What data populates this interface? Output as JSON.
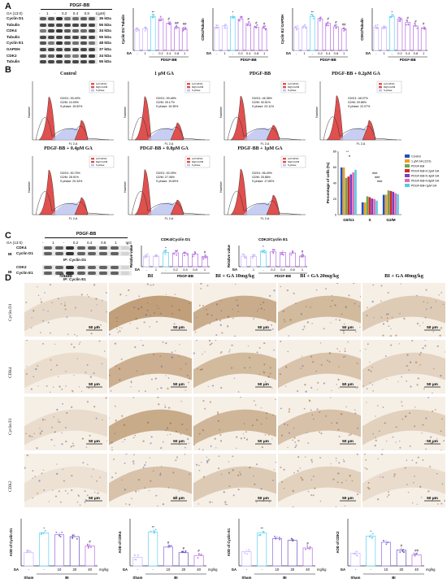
{
  "panel_labels": {
    "A": "A",
    "B": "B",
    "C": "C",
    "D": "D"
  },
  "panelA": {
    "blot_header": "PDGF-BB",
    "ga_label": "GA (13:0)",
    "lanes": [
      "-",
      "1",
      "-",
      "0.2",
      "0.4",
      "0.8",
      "1"
    ],
    "unit": "(μM)",
    "proteins": [
      "Cyclin D1",
      "Tubulin",
      "CDK4",
      "Tubulin",
      "Cyclin E1",
      "GAPDH",
      "CDK2",
      "Tubulin"
    ],
    "sizes": [
      "36 kDa",
      "55 kDa",
      "34 kDa",
      "55 kDa",
      "48 kDa",
      "37 kDa",
      "34 kDa",
      "55 kDa"
    ],
    "charts": [
      {
        "ylabel": "Cyclin D1/ Tubulin",
        "xaxis_ga": "GA",
        "pdgf": "PDGF-BB",
        "ticks": [
          "-",
          "1",
          "-",
          "0.2",
          "0.4",
          "0.8",
          "1"
        ],
        "unit": "(μM)",
        "marks": [
          "",
          "",
          "**",
          "",
          "#",
          "##",
          "##"
        ]
      },
      {
        "ylabel": "CDK4/Tubulin",
        "xaxis_ga": "GA",
        "pdgf": "PDGF-BB",
        "ticks": [
          "-",
          "1",
          "-",
          "0.2",
          "0.4",
          "0.8",
          "1"
        ],
        "unit": "(μM)",
        "marks": [
          "",
          "",
          "*",
          "",
          "#",
          "#",
          "#"
        ]
      },
      {
        "ylabel": "Cyclin E1/ GAPDH",
        "xaxis_ga": "GA",
        "pdgf": "PDGF-BB",
        "ticks": [
          "-",
          "1",
          "-",
          "0.2",
          "0.4",
          "0.8",
          "1"
        ],
        "unit": "(μM)",
        "marks": [
          "",
          "",
          "**",
          "",
          "#",
          "#",
          "##"
        ]
      },
      {
        "ylabel": "CDK2/Tubulin",
        "xaxis_ga": "GA",
        "pdgf": "PDGF-BB",
        "ticks": [
          "-",
          "1",
          "-",
          "0.2",
          "0.4",
          "0.8",
          "1"
        ],
        "unit": "(μM)",
        "marks": [
          "",
          "",
          "*",
          "",
          "#",
          "#",
          "#"
        ]
      }
    ]
  },
  "panelB": {
    "histograms": [
      {
        "title": "Control",
        "stats": [
          "G0/G1: 59.49%",
          "G2/M: 24.99%",
          "S phase: 15.52%"
        ]
      },
      {
        "title": "1 μM GA",
        "stats": [
          "G0/G1: 59.48%",
          "G2/M: 25.17%",
          "S phase: 15.35%"
        ]
      },
      {
        "title": "PDGF-BB",
        "stats": [
          "G0/G1: 46.38%",
          "G2/M: 30.51%",
          "S phase: 23.11%"
        ]
      },
      {
        "title": "PDGF-BB + 0.2μM GA",
        "stats": [
          "G0/G1: 48.07%",
          "G2/M: 29.86%",
          "S phase: 22.07%"
        ]
      },
      {
        "title": "PDGF-BB + 0.4μM GA",
        "stats": [
          "G0/G1: 50.75%",
          "G2/M: 28.91%",
          "S phase: 20.34%"
        ]
      },
      {
        "title": "PDGF-BB + 0.8μM GA",
        "stats": [
          "G0/G1: 53.25%",
          "G2/M: 27.06%",
          "S phase: 19.69%"
        ]
      },
      {
        "title": "PDGF-BB + 1μM GA",
        "stats": [
          "G0/G1: 56.49%",
          "G2/M: 25.86%",
          "S phase: 17.65%"
        ]
      }
    ],
    "legend_items": [
      "Left G0/G1",
      "Right G2/M",
      "S-phase"
    ],
    "axis_x": "FL 2-A",
    "axis_y": "Number",
    "bar_chart": {
      "ylabel": "Percentage of cells (%)",
      "categories": [
        "G0/G1",
        "S",
        "G2/M"
      ],
      "legend": [
        "Control",
        "1 μM GA (13:0)",
        "PDGF-BB",
        "PDGF-BB+0.2μM GA",
        "PDGF-BB+0.4μM GA",
        "PDGF-BB+0.8μM GA",
        "PDGF-BB+1μM GA"
      ],
      "colors": [
        "#1f4fbf",
        "#f0a020",
        "#6aa84f",
        "#d62828",
        "#7a3fbf",
        "#e26bb0",
        "#5cc9e6"
      ],
      "sig": [
        "**",
        "#",
        "###",
        "###",
        "###"
      ]
    }
  },
  "panelC": {
    "header": "PDGF-BB",
    "ga_label": "GA (13:0)",
    "lanes": [
      "-",
      "1",
      "-",
      "0.2",
      "0.4",
      "0.8",
      "1",
      "IgG"
    ],
    "ib": "IB",
    "blot1_proteins": [
      "CDK4",
      "Cyclin D1"
    ],
    "ip1": "IP: Cyclin D1",
    "blot2_proteins": [
      "CDK2",
      "Cyclin E1"
    ],
    "ip2": "IP: Cyclin E1",
    "charts": [
      {
        "title": "CDK4/Cyclin D1",
        "ylabel": "Relative value",
        "ga": "GA",
        "ticks": [
          "-",
          "1",
          "-",
          "0.2",
          "0.4",
          "0.8",
          "1"
        ],
        "pdgf": "PDGF-BB",
        "marks": [
          "",
          "",
          "*",
          "",
          "",
          "",
          "#"
        ]
      },
      {
        "title": "CDK2/Cyclin E1",
        "ylabel": "Relative value",
        "ga": "GA",
        "ticks": [
          "-",
          "1",
          "-",
          "0.2",
          "0.4",
          "0.8",
          "1"
        ],
        "pdgf": "PDGF-BB",
        "marks": [
          "",
          "",
          "*",
          "",
          "",
          "",
          "#"
        ]
      }
    ]
  },
  "panelD": {
    "columns": [
      "Sham",
      "BI",
      "BI + GA 10mg/kg",
      "BI + GA 20mg/kg",
      "BI + GA 40mg/kg"
    ],
    "rows": [
      "Cyclin D1",
      "CDK4",
      "Cyclin E1",
      "CDK2"
    ],
    "scale_text": "50 μm",
    "charts": [
      {
        "ylabel": "AOD of Cyclin D1",
        "marks": [
          "",
          "*",
          "",
          "",
          "#"
        ]
      },
      {
        "ylabel": "AOD of CDK4",
        "marks": [
          "",
          "**",
          "#",
          "#",
          "#"
        ]
      },
      {
        "ylabel": "AOD of Cyclin E1",
        "marks": [
          "",
          "**",
          "",
          "",
          "#"
        ]
      },
      {
        "ylabel": "AOD of CDK2",
        "marks": [
          "",
          "*",
          "",
          "#",
          "##"
        ]
      }
    ],
    "ga_row": {
      "label": "GA",
      "ticks": [
        "-",
        "-",
        "10",
        "20",
        "40"
      ],
      "unit": "mg/kg"
    },
    "group_row": {
      "sham": "Sham",
      "bi": "BI"
    }
  },
  "colors": {
    "bar_fill": "#ffffff",
    "dot_sham": "#c9b3ff",
    "dot_pdgf": "#5fd0f2",
    "dot_ga": "#b56ee0",
    "ihc_brown": "#a0703a",
    "ihc_light": "#f1e4d3",
    "flow_red": "#e0504e",
    "flow_blue": "#b9c2ee"
  },
  "chart_data": [
    {
      "type": "bar",
      "title": "",
      "ylabel": "Cyclin D1/ Tubulin",
      "categories": [
        "-",
        "1",
        "-",
        "0.2",
        "0.4",
        "0.8",
        "1"
      ],
      "values": [
        0.95,
        1.0,
        1.55,
        1.45,
        1.25,
        1.05,
        1.0
      ]
    },
    {
      "type": "bar",
      "title": "",
      "ylabel": "CDK4/Tubulin",
      "categories": [
        "-",
        "1",
        "-",
        "0.2",
        "0.4",
        "0.8",
        "1"
      ],
      "values": [
        1.0,
        1.05,
        1.45,
        1.35,
        1.15,
        1.0,
        0.95
      ]
    },
    {
      "type": "bar",
      "title": "",
      "ylabel": "Cyclin E1/ GAPDH",
      "categories": [
        "-",
        "1",
        "-",
        "0.2",
        "0.4",
        "0.8",
        "1"
      ],
      "values": [
        1.0,
        1.05,
        1.5,
        1.4,
        1.2,
        1.05,
        0.95
      ]
    },
    {
      "type": "bar",
      "title": "",
      "ylabel": "CDK2/Tubulin",
      "categories": [
        "-",
        "1",
        "-",
        "0.2",
        "0.4",
        "0.8",
        "1"
      ],
      "values": [
        1.0,
        1.0,
        1.45,
        1.35,
        1.2,
        1.05,
        0.95
      ]
    },
    {
      "type": "bar",
      "title": "",
      "ylabel": "Percentage of cells (%)",
      "categories": [
        "G0/G1",
        "S",
        "G2/M"
      ],
      "series": [
        {
          "name": "Control",
          "values": [
            59.49,
            15.52,
            24.99
          ]
        },
        {
          "name": "1 μM GA (13:0)",
          "values": [
            59.48,
            15.35,
            25.17
          ]
        },
        {
          "name": "PDGF-BB",
          "values": [
            46.38,
            23.11,
            30.51
          ]
        },
        {
          "name": "PDGF-BB+0.2μM GA",
          "values": [
            48.07,
            22.07,
            29.86
          ]
        },
        {
          "name": "PDGF-BB+0.4μM GA",
          "values": [
            50.75,
            20.34,
            28.91
          ]
        },
        {
          "name": "PDGF-BB+0.8μM GA",
          "values": [
            53.25,
            19.69,
            27.06
          ]
        },
        {
          "name": "PDGF-BB+1μM GA",
          "values": [
            56.49,
            17.65,
            25.86
          ]
        }
      ],
      "ylim": [
        0,
        80
      ]
    },
    {
      "type": "bar",
      "title": "CDK4/Cyclin D1",
      "ylabel": "Relative value",
      "categories": [
        "-",
        "1",
        "-",
        "0.2",
        "0.4",
        "0.8",
        "1"
      ],
      "values": [
        1.0,
        1.0,
        1.35,
        1.3,
        1.25,
        1.2,
        0.95
      ],
      "ylim": [
        0,
        2
      ]
    },
    {
      "type": "bar",
      "title": "CDK2/Cyclin E1",
      "ylabel": "Relative value",
      "categories": [
        "-",
        "1",
        "-",
        "0.2",
        "0.4",
        "0.8",
        "1"
      ],
      "values": [
        1.0,
        0.95,
        1.45,
        1.4,
        1.35,
        1.3,
        1.0
      ],
      "ylim": [
        0,
        2
      ]
    },
    {
      "type": "bar",
      "title": "",
      "ylabel": "AOD of Cyclin D1",
      "categories": [
        "Sham",
        "BI",
        "10",
        "20",
        "40"
      ],
      "values": [
        0.7,
        1.75,
        1.65,
        1.55,
        1.05
      ],
      "ylim": [
        0,
        2.5
      ]
    },
    {
      "type": "bar",
      "title": "",
      "ylabel": "AOD of CDK4",
      "categories": [
        "Sham",
        "BI",
        "10",
        "20",
        "40"
      ],
      "values": [
        0.45,
        1.8,
        1.0,
        0.7,
        0.55
      ],
      "ylim": [
        0,
        2.5
      ]
    },
    {
      "type": "bar",
      "title": "",
      "ylabel": "AOD of Cyclin E1",
      "categories": [
        "Sham",
        "BI",
        "10",
        "20",
        "40"
      ],
      "values": [
        0.75,
        1.75,
        1.45,
        1.35,
        0.95
      ],
      "ylim": [
        0,
        2.5
      ]
    },
    {
      "type": "bar",
      "title": "",
      "ylabel": "AOD of CDK2",
      "categories": [
        "Sham",
        "BI",
        "10",
        "20",
        "40"
      ],
      "values": [
        0.4,
        0.95,
        0.75,
        0.5,
        0.35
      ],
      "ylim": [
        0,
        1.5
      ]
    }
  ]
}
